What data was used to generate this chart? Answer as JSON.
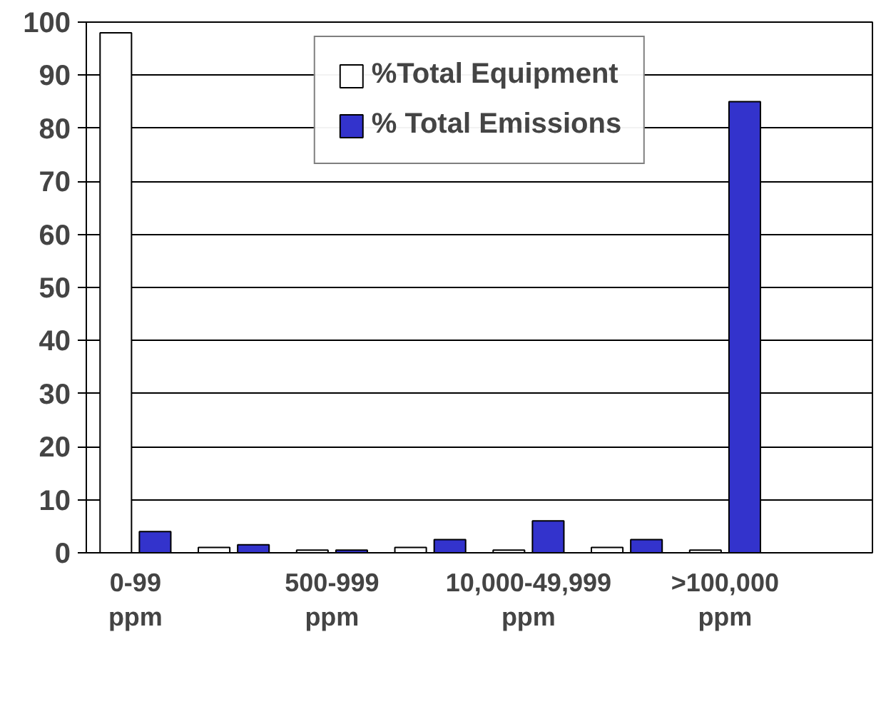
{
  "chart_data": {
    "type": "bar",
    "categories": [
      "0-99 ppm",
      null,
      "500-999 ppm",
      null,
      "10,000-49,999 ppm",
      null,
      ">100,000 ppm",
      null
    ],
    "series": [
      {
        "name": "%Total Equipment",
        "color": "#ffffff",
        "values": [
          98,
          1,
          0.5,
          1,
          0.5,
          1,
          0.5,
          null
        ]
      },
      {
        "name": "% Total Emissions",
        "color": "#3333cc",
        "values": [
          4,
          1.5,
          0.5,
          2.5,
          6,
          2.5,
          85,
          null
        ]
      }
    ],
    "ylim": [
      0,
      100
    ],
    "yticks": [
      0,
      10,
      20,
      30,
      40,
      50,
      60,
      70,
      80,
      90,
      100
    ],
    "grid": "y",
    "legend": "top"
  }
}
